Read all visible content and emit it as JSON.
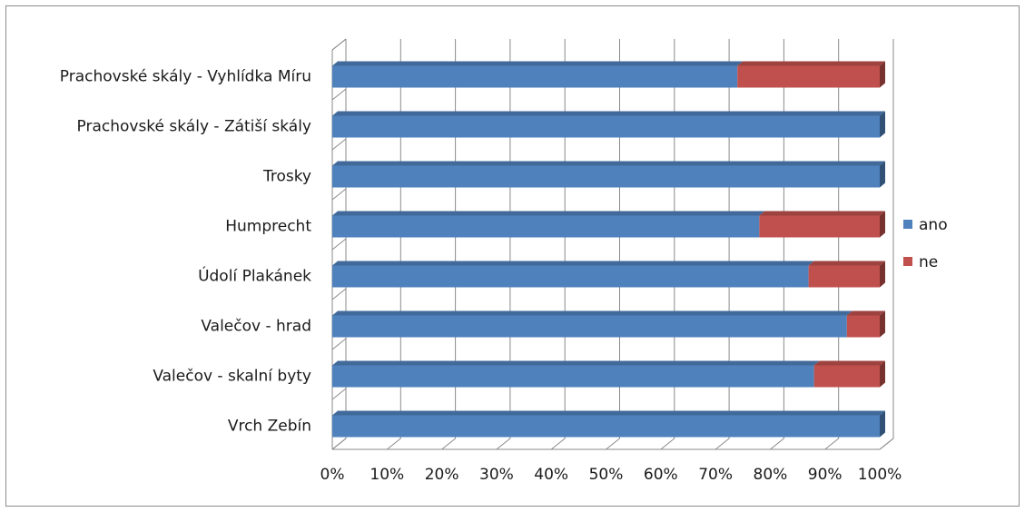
{
  "chart_data": {
    "type": "bar",
    "orientation": "horizontal",
    "stacked": "percent",
    "categories": [
      "Prachovské skály - Vyhlídka Míru",
      "Prachovské skály - Zátiší skály",
      "Trosky",
      "Humprecht",
      "Údolí Plakánek",
      "Valečov - hrad",
      "Valečov - skalní byty",
      "Vrch Zebín"
    ],
    "series": [
      {
        "name": "ano",
        "color": "#4f81bd",
        "values": [
          74,
          100,
          100,
          78,
          87,
          94,
          88,
          100
        ]
      },
      {
        "name": "ne",
        "color": "#c0504d",
        "values": [
          26,
          0,
          0,
          22,
          13,
          6,
          12,
          0
        ]
      }
    ],
    "xticks": [
      "0%",
      "10%",
      "20%",
      "30%",
      "40%",
      "50%",
      "60%",
      "70%",
      "80%",
      "90%",
      "100%"
    ],
    "xlim": [
      0,
      100
    ],
    "grid": true,
    "legend_position": "right",
    "title": "",
    "xlabel": "",
    "ylabel": ""
  }
}
